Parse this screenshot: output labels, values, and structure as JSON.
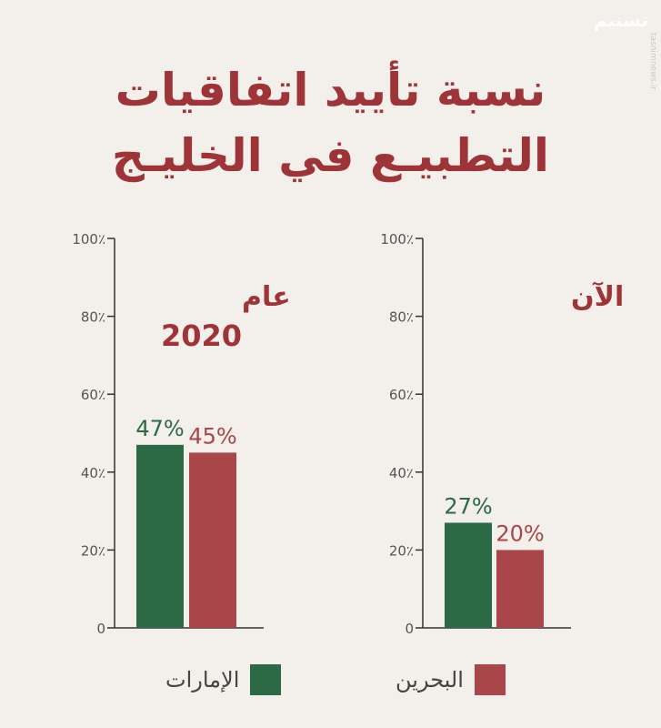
{
  "header": {
    "title_line1": "نسبة تأييد اتفاقيات",
    "title_line2": "التطبيـع في الخليـج",
    "logo": "تسنيم",
    "watermark": "tasnimnews.ir"
  },
  "legend": {
    "uae_label": "الإمارات",
    "bahrain_label": "البحرين"
  },
  "colors": {
    "uae": "#2c6a45",
    "bahrain": "#a8464a",
    "title": "#9e3437",
    "axis": "#333333"
  },
  "chart_data": [
    {
      "type": "bar",
      "annotation_line1": "عام",
      "annotation_line2": "2020",
      "series": [
        {
          "name": "الإمارات",
          "values": [
            47
          ]
        },
        {
          "name": "البحرين",
          "values": [
            45
          ]
        }
      ],
      "data_labels": [
        "47%",
        "45%"
      ],
      "yticks": [
        "0",
        "20٪",
        "40٪",
        "60٪",
        "80٪",
        "100٪"
      ],
      "ylim": [
        0,
        100
      ]
    },
    {
      "type": "bar",
      "annotation_line1": "الآن",
      "series": [
        {
          "name": "الإمارات",
          "values": [
            27
          ]
        },
        {
          "name": "البحرين",
          "values": [
            20
          ]
        }
      ],
      "data_labels": [
        "27%",
        "20%"
      ],
      "yticks": [
        "0",
        "20٪",
        "40٪",
        "60٪",
        "80٪",
        "100٪"
      ],
      "ylim": [
        0,
        100
      ]
    }
  ]
}
